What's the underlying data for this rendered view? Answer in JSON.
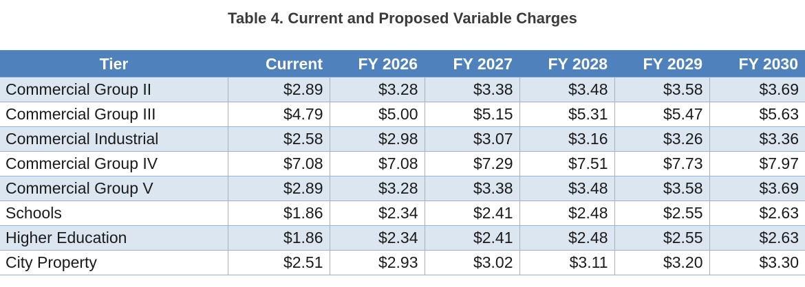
{
  "title": "Table 4. Current and Proposed Variable Charges",
  "columns": [
    "Tier",
    "Current",
    "FY 2026",
    "FY 2027",
    "FY 2028",
    "FY 2029",
    "FY 2030"
  ],
  "rows": [
    [
      "Commercial Group II",
      "$2.89",
      "$3.28",
      "$3.38",
      "$3.48",
      "$3.58",
      "$3.69"
    ],
    [
      "Commercial Group III",
      "$4.79",
      "$5.00",
      "$5.15",
      "$5.31",
      "$5.47",
      "$5.63"
    ],
    [
      "Commercial Industrial",
      "$2.58",
      "$2.98",
      "$3.07",
      "$3.16",
      "$3.26",
      "$3.36"
    ],
    [
      "Commercial Group IV",
      "$7.08",
      "$7.08",
      "$7.29",
      "$7.51",
      "$7.73",
      "$7.97"
    ],
    [
      "Commercial Group V",
      "$2.89",
      "$3.28",
      "$3.38",
      "$3.48",
      "$3.58",
      "$3.69"
    ],
    [
      "Schools",
      "$1.86",
      "$2.34",
      "$2.41",
      "$2.48",
      "$2.55",
      "$2.63"
    ],
    [
      "Higher Education",
      "$1.86",
      "$2.34",
      "$2.41",
      "$2.48",
      "$2.55",
      "$2.63"
    ],
    [
      "City Property",
      "$2.51",
      "$2.93",
      "$3.02",
      "$3.11",
      "$3.20",
      "$3.30"
    ]
  ],
  "colors": {
    "header_bg": "#4f81bd",
    "header_text": "#ffffff",
    "band_row": "#dce6f1",
    "plain_row": "#ffffff",
    "grid_line": "#95b3d7",
    "title_text": "#3a3a3a"
  }
}
